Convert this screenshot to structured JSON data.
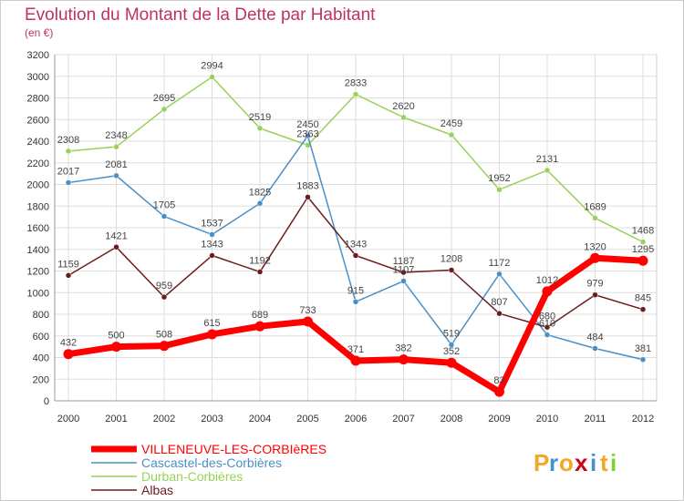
{
  "chart_data": {
    "type": "line",
    "title": "Evolution du Montant de la Dette par Habitant",
    "subtitle": "(en €)",
    "x": [
      "2000",
      "2001",
      "2002",
      "2003",
      "2004",
      "2005",
      "2006",
      "2007",
      "2008",
      "2009",
      "2010",
      "2011",
      "2012"
    ],
    "ylim": [
      0,
      3200
    ],
    "yticks": [
      0,
      200,
      400,
      600,
      800,
      1000,
      1200,
      1400,
      1600,
      1800,
      2000,
      2200,
      2400,
      2600,
      2800,
      3000,
      3200
    ],
    "grid": true,
    "legend_position": "bottom-left",
    "series": [
      {
        "name": "VILLENEUVE-LES-CORBIèRES",
        "color": "#ff0000",
        "values": [
          432,
          500,
          508,
          615,
          689,
          733,
          371,
          382,
          352,
          83,
          1012,
          1320,
          1295
        ]
      },
      {
        "name": "Cascastel-des-Corbières",
        "color": "#4a90c8",
        "values": [
          2017,
          2081,
          1705,
          1537,
          1825,
          2450,
          915,
          1107,
          519,
          1172,
          610,
          484,
          381
        ]
      },
      {
        "name": "Durban-Corbières",
        "color": "#99d15a",
        "values": [
          2308,
          2348,
          2695,
          2994,
          2519,
          2363,
          2833,
          2620,
          2459,
          1952,
          2131,
          1689,
          1468
        ]
      },
      {
        "name": "Albas",
        "color": "#6b1c1c",
        "values": [
          1159,
          1421,
          959,
          1343,
          1192,
          1883,
          1343,
          1187,
          1208,
          807,
          680,
          979,
          845
        ]
      }
    ],
    "data_labels": [
      [
        "432",
        "500",
        "508",
        "615",
        "689",
        "733",
        "371",
        "382",
        "352",
        "83",
        "1012",
        "1320",
        "1295"
      ],
      [
        "2017",
        "2081",
        "1705",
        "1537",
        "1825",
        "2450",
        "915",
        "1107",
        "519",
        "1172",
        "610",
        "484",
        "381"
      ],
      [
        "2308",
        "2348",
        "2695",
        "2994",
        "2519",
        "2363",
        "2833",
        "2620",
        "2459",
        "1952",
        "2131",
        "1689",
        "1468"
      ],
      [
        "1159",
        "1421",
        "959",
        "1343",
        "1192",
        "1883",
        "1343",
        "1187",
        "1208",
        "807",
        "680",
        "979",
        "845"
      ]
    ]
  },
  "brand": {
    "text": "Proxiti",
    "letters": [
      "P",
      "r",
      "o",
      "x",
      "i",
      "t",
      "i"
    ],
    "colors": [
      "#f5a623",
      "#4a90c8",
      "#f5a623",
      "#d0021b",
      "#4a90c8",
      "#f5a623",
      "#7ed321"
    ]
  },
  "colors": {
    "title": "#c0306a",
    "axis": "#333333",
    "grid": "#dddddd",
    "plot_bg": "#ffffff",
    "frame": "#cccccc"
  }
}
